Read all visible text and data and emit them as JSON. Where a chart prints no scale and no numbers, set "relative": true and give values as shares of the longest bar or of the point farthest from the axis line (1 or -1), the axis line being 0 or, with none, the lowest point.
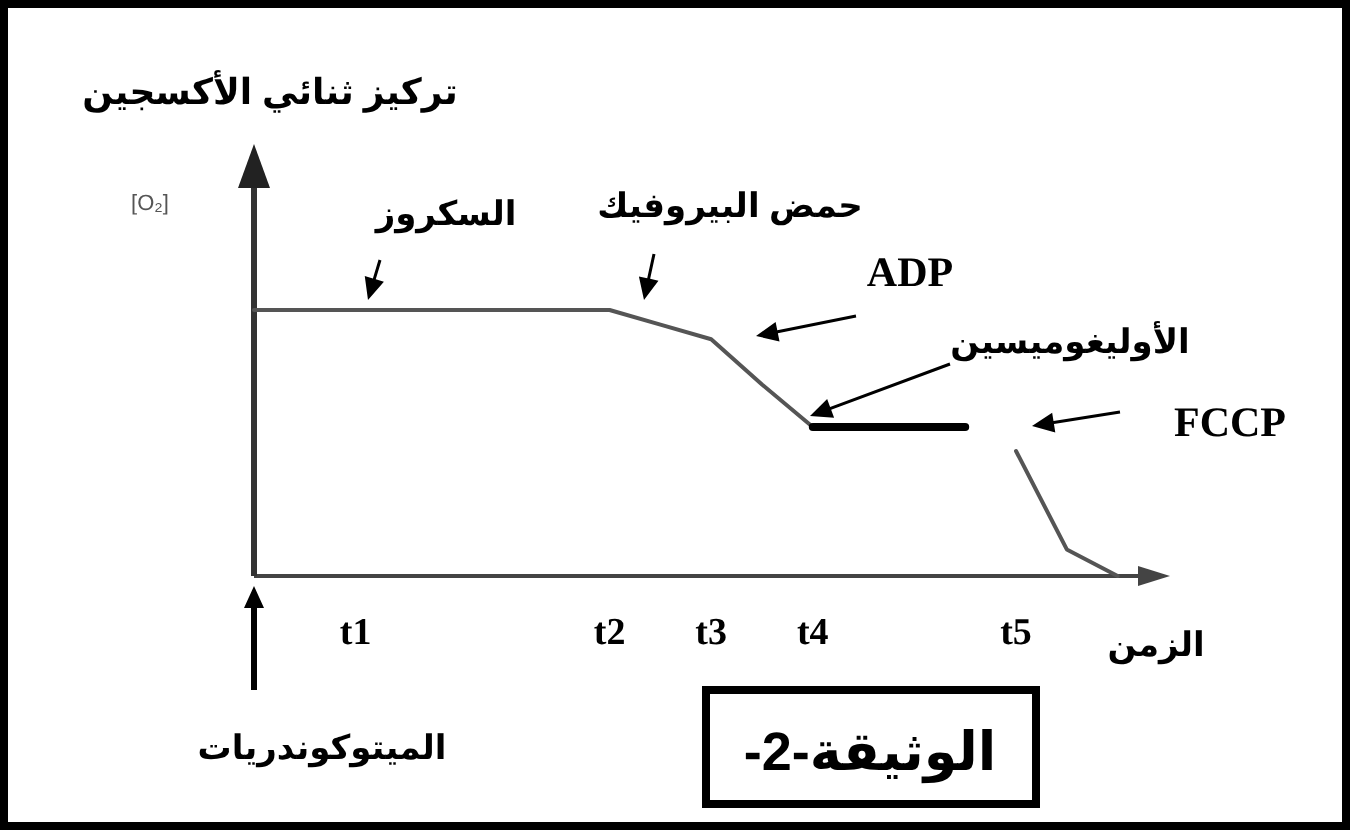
{
  "chart_data": {
    "type": "line",
    "title": "الوثيقة-2-",
    "xlabel": "الزمن",
    "relative": true,
    "marker": "none",
    "line_style": "solid",
    "categories": [
      null,
      null,
      "t1",
      null,
      null,
      null,
      null,
      "t2",
      null,
      "t3",
      null,
      "t4",
      null,
      null,
      null,
      "t5",
      null,
      null,
      null
    ],
    "series": [
      {
        "color": "#555555",
        "values": [
          1,
          1,
          1,
          1,
          1,
          1,
          1,
          1,
          0.945,
          0.89,
          0.72,
          0.56,
          null,
          null,
          null,
          null,
          null,
          null,
          null
        ]
      },
      {
        "color": "#000000",
        "values": [
          null,
          null,
          null,
          null,
          null,
          null,
          null,
          null,
          null,
          null,
          null,
          0.56,
          0.56,
          0.56,
          0.56,
          null,
          null,
          null,
          null
        ]
      },
      {
        "color": "#555555",
        "values": [
          null,
          null,
          null,
          null,
          null,
          null,
          null,
          null,
          null,
          null,
          null,
          null,
          null,
          null,
          null,
          0.47,
          0.1,
          0,
          null
        ]
      }
    ],
    "annotations": [
      "السكروز",
      "حمض البيروفيك",
      "ADP",
      "الأوليغوميسين",
      "FCCP",
      "الميتوكوندريات",
      "[O₂]",
      "تركيز ثنائي الأكسجين"
    ]
  }
}
